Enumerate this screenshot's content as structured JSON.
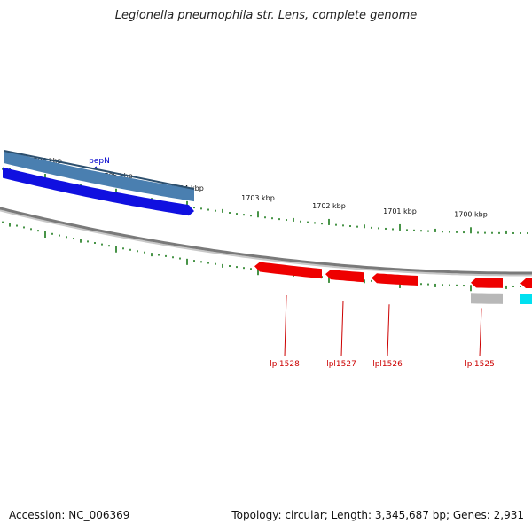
{
  "title": "Legionella pneumophila str. Lens, complete genome",
  "footer": {
    "accession": "Accession: NC_006369",
    "topology": "Topology: circular; Length: 3,345,687 bp; Genes: 2,931"
  },
  "colors": {
    "backbone": "#7a7a7a",
    "tick": "#1a7a1a",
    "forward_gene": "#1010e0",
    "forward_gene_light": "#4a7fb0",
    "reverse_gene": "#ee0000",
    "pseudo_gene": "#b8b8b8",
    "other_gene": "#00e0f0",
    "label_forward": "#0000cc",
    "label_reverse": "#cc0000"
  },
  "scale": {
    "unit": "kbp",
    "labels": [
      {
        "kbp": 1706,
        "text": "1706 kbp"
      },
      {
        "kbp": 1705,
        "text": "1705 kbp"
      },
      {
        "kbp": 1704,
        "text": "1704 kbp"
      },
      {
        "kbp": 1703,
        "text": "1703 kbp"
      },
      {
        "kbp": 1702,
        "text": "1702 kbp"
      },
      {
        "kbp": 1701,
        "text": "1701 kbp"
      },
      {
        "kbp": 1700,
        "text": "1700 kbp"
      }
    ]
  },
  "genes": [
    {
      "name": "",
      "strand": "forward",
      "kind": "cds",
      "start_kbp": 1707.85,
      "end_kbp": 1707.4
    },
    {
      "name": "pepN",
      "strand": "forward",
      "kind": "gene",
      "start_kbp": 1706.58,
      "end_kbp": 1703.9
    },
    {
      "name": "pepN",
      "strand": "forward",
      "kind": "cds",
      "start_kbp": 1706.6,
      "end_kbp": 1703.9
    },
    {
      "name": "lpl1528",
      "strand": "reverse",
      "kind": "cds",
      "start_kbp": 1703.05,
      "end_kbp": 1702.1
    },
    {
      "name": "lpl1527",
      "strand": "reverse",
      "kind": "cds",
      "start_kbp": 1702.05,
      "end_kbp": 1701.5
    },
    {
      "name": "lpl1526",
      "strand": "reverse",
      "kind": "cds",
      "start_kbp": 1701.4,
      "end_kbp": 1700.75
    },
    {
      "name": "lpl1525",
      "strand": "reverse",
      "kind": "cds",
      "start_kbp": 1700.0,
      "end_kbp": 1699.55
    },
    {
      "name": "",
      "strand": "reverse",
      "kind": "pseudo",
      "start_kbp": 1700.0,
      "end_kbp": 1699.55
    },
    {
      "name": "",
      "strand": "reverse",
      "kind": "cds",
      "start_kbp": 1699.3,
      "end_kbp": 1698.9
    },
    {
      "name": "",
      "strand": "reverse",
      "kind": "other",
      "start_kbp": 1699.3,
      "end_kbp": 1698.9
    }
  ],
  "gene_labels": [
    {
      "text": "pepN",
      "strand": "forward",
      "kbp": 1705.3
    },
    {
      "text": "lpl1528",
      "strand": "reverse",
      "kbp": 1702.6
    },
    {
      "text": "lpl1527",
      "strand": "reverse",
      "kbp": 1701.8
    },
    {
      "text": "lpl1526",
      "strand": "reverse",
      "kbp": 1701.15
    },
    {
      "text": "lpl1525",
      "strand": "reverse",
      "kbp": 1699.85
    }
  ]
}
